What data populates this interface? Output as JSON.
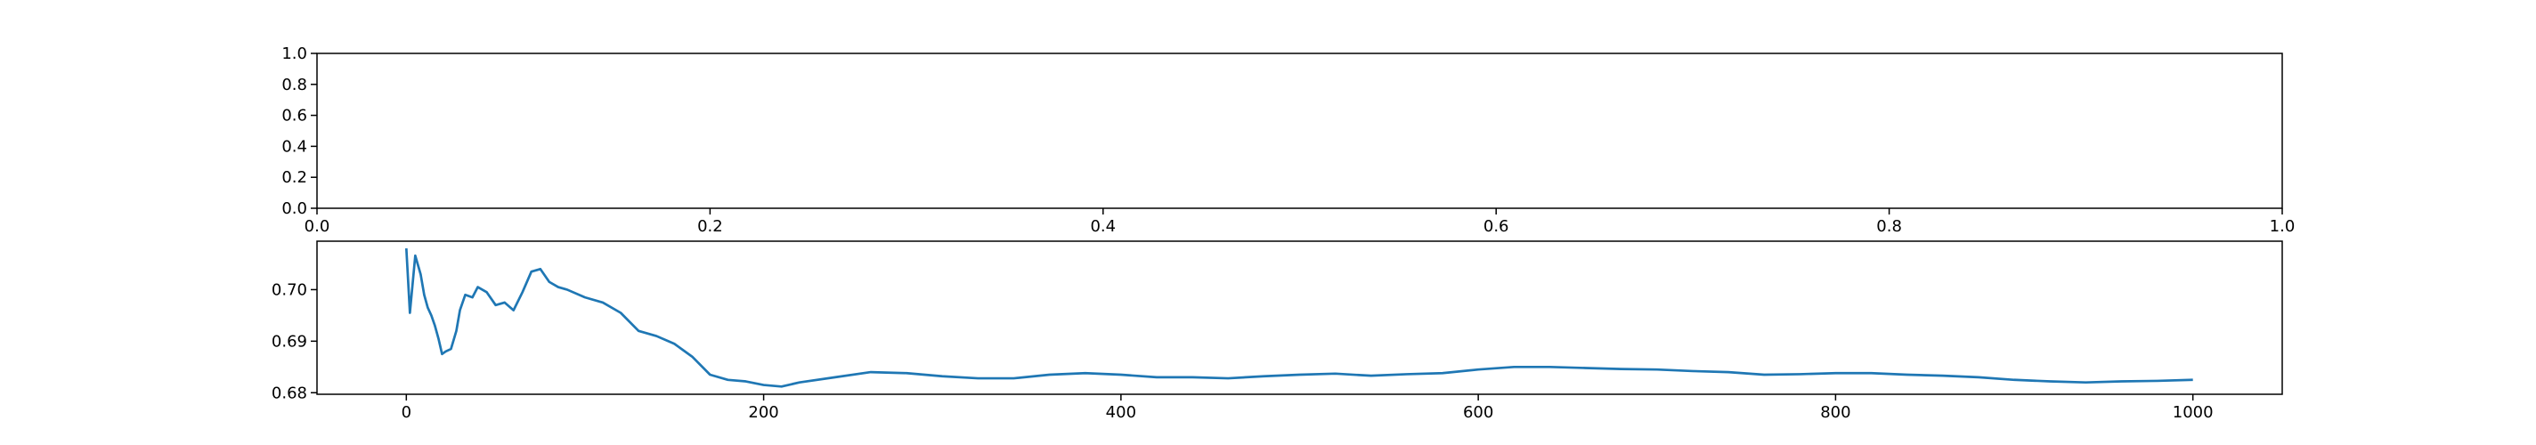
{
  "chart_data": [
    {
      "type": "line",
      "series": [],
      "xlim": [
        0,
        1
      ],
      "xticks": [
        {
          "value": 0,
          "label": "0.0"
        },
        0.2,
        0.4,
        0.6,
        0.8,
        {
          "value": 1,
          "label": "1.0"
        }
      ],
      "ylim": [
        0,
        1
      ],
      "yticks": [
        {
          "value": 0,
          "label": "0.0"
        },
        0.2,
        0.4,
        0.6,
        0.8,
        {
          "value": 1,
          "label": "1.0"
        }
      ]
    },
    {
      "type": "line",
      "x": [
        0,
        2,
        5,
        8,
        10,
        12,
        14,
        16,
        18,
        20,
        22,
        25,
        28,
        30,
        33,
        37,
        40,
        45,
        50,
        55,
        60,
        65,
        70,
        75,
        80,
        85,
        90,
        100,
        110,
        120,
        130,
        140,
        150,
        160,
        170,
        180,
        190,
        200,
        210,
        220,
        240,
        260,
        280,
        300,
        320,
        340,
        360,
        380,
        400,
        420,
        440,
        460,
        480,
        500,
        520,
        540,
        560,
        580,
        600,
        620,
        640,
        660,
        680,
        700,
        720,
        740,
        760,
        780,
        800,
        820,
        840,
        860,
        880,
        900,
        920,
        940,
        960,
        980,
        1000
      ],
      "series": [
        {
          "color": "#1f77b4",
          "values": [
            0.708,
            0.6955,
            0.7066,
            0.703,
            0.699,
            0.6965,
            0.695,
            0.693,
            0.6905,
            0.6875,
            0.688,
            0.6885,
            0.692,
            0.696,
            0.699,
            0.6985,
            0.7005,
            0.6995,
            0.697,
            0.6975,
            0.696,
            0.6995,
            0.7035,
            0.704,
            0.7015,
            0.7005,
            0.7,
            0.6985,
            0.6975,
            0.6955,
            0.692,
            0.691,
            0.6895,
            0.687,
            0.6835,
            0.6825,
            0.6822,
            0.6815,
            0.6812,
            0.682,
            0.683,
            0.684,
            0.6838,
            0.6832,
            0.6828,
            0.6828,
            0.6835,
            0.6838,
            0.6835,
            0.683,
            0.683,
            0.6828,
            0.6832,
            0.6835,
            0.6837,
            0.6833,
            0.6836,
            0.6838,
            0.6845,
            0.685,
            0.685,
            0.6848,
            0.6846,
            0.6845,
            0.6842,
            0.684,
            0.6835,
            0.6836,
            0.6838,
            0.6838,
            0.6835,
            0.6833,
            0.683,
            0.6825,
            0.6822,
            0.682,
            0.6822,
            0.6823,
            0.6825
          ]
        }
      ],
      "xlim": [
        -50,
        1050
      ],
      "xticks": [
        0,
        200,
        400,
        600,
        800,
        1000
      ],
      "ylim": [
        0.6797,
        0.7094
      ],
      "yticks": [
        0.68,
        0.69,
        {
          "value": 0.7,
          "label": "0.70"
        }
      ]
    }
  ]
}
